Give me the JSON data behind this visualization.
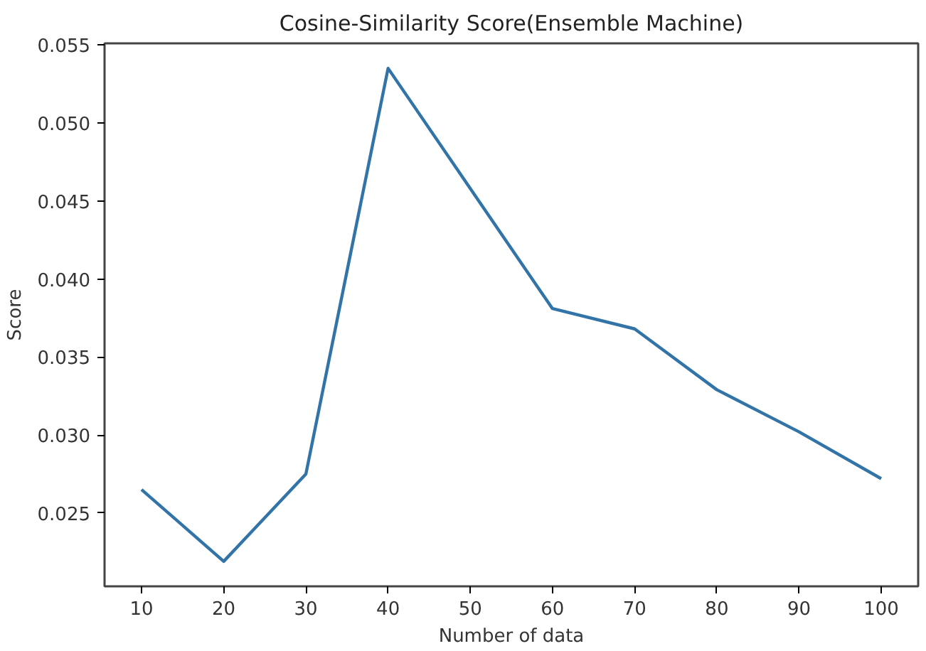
{
  "chart_data": {
    "type": "line",
    "title": "Cosine-Similarity Score(Ensemble Machine)",
    "xlabel": "Number of data",
    "ylabel": "Score",
    "x": [
      10,
      20,
      30,
      40,
      50,
      60,
      70,
      80,
      90,
      100
    ],
    "series": [
      {
        "color": "#3274a8",
        "values": [
          0.0265,
          0.0219,
          0.0275,
          0.0535,
          0.0458,
          0.0381,
          0.0368,
          0.0329,
          0.0302,
          0.0272
        ]
      }
    ],
    "xlim": [
      5.5,
      104.5
    ],
    "ylim": [
      0.0203,
      0.0551
    ],
    "xticks": [
      10,
      20,
      30,
      40,
      50,
      60,
      70,
      80,
      90,
      100
    ],
    "yticks": [
      {
        "value": 0.025,
        "label": "0.025"
      },
      {
        "value": 0.03,
        "label": "0.030"
      },
      {
        "value": 0.035,
        "label": "0.035"
      },
      {
        "value": 0.04,
        "label": "0.040"
      },
      {
        "value": 0.045,
        "label": "0.045"
      },
      {
        "value": 0.05,
        "label": "0.050"
      },
      {
        "value": 0.055,
        "label": "0.055"
      }
    ],
    "grid": false,
    "marker": "none",
    "line_style": "solid"
  }
}
